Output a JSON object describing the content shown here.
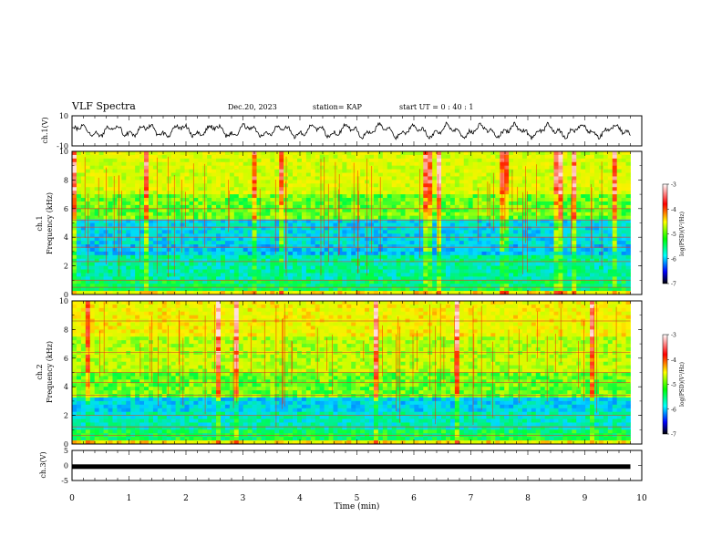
{
  "header": {
    "title": "VLF Spectra",
    "date": "Dec.20, 2023",
    "station": "station= KAP",
    "start_ut": "start  UT =   0 : 40 : 1"
  },
  "chart_data": [
    {
      "type": "line",
      "ylabel": "ch.1(V)",
      "ylim": [
        -10,
        10
      ],
      "yticks": [
        "10",
        "-10"
      ],
      "xlim": [
        0,
        10
      ],
      "description_only_style": "noisy oscillating waveform around 0"
    },
    {
      "type": "heatmap",
      "ylabel": "ch.1\nFrequency (kHz)",
      "ylabel_line1": "ch.1",
      "ylabel_line2": "Frequency (kHz)",
      "ylim": [
        0,
        10
      ],
      "yticks": [
        "0",
        "2",
        "4",
        "6",
        "8",
        "10"
      ],
      "xlim": [
        0,
        9.8
      ],
      "colorbar": {
        "range": [
          -7,
          -3
        ],
        "ticks": [
          "-3",
          "-4",
          "-5",
          "-6",
          "-7"
        ],
        "label": "log(PSD)(V²/Hz)"
      }
    },
    {
      "type": "heatmap",
      "ylabel_line1": "ch.2",
      "ylabel_line2": "Frequency (kHz)",
      "ylim": [
        0,
        10
      ],
      "yticks": [
        "0",
        "2",
        "4",
        "6",
        "8",
        "10"
      ],
      "xlim": [
        0,
        9.8
      ],
      "colorbar": {
        "range": [
          -7,
          -3
        ],
        "ticks": [
          "-3",
          "-4",
          "-5",
          "-6",
          "-7"
        ],
        "label": "log(PSD)(V²/Hz)"
      }
    },
    {
      "type": "line",
      "ylabel": "ch.3(V)",
      "ylim": [
        -5,
        5
      ],
      "yticks": [
        "5",
        "0",
        "-5"
      ],
      "xlim": [
        0,
        10
      ],
      "level": -0.4
    }
  ],
  "xaxis": {
    "label": "Time (min)",
    "ticks": [
      "0",
      "1",
      "2",
      "3",
      "4",
      "5",
      "6",
      "7",
      "8",
      "9",
      "10"
    ]
  },
  "colors": {
    "line": "#000000",
    "frame": "#000000"
  }
}
